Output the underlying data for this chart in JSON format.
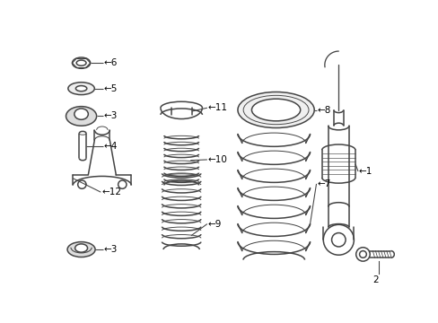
{
  "bg_color": "#ffffff",
  "line_color": "#444444",
  "lw": 1.1,
  "label_fontsize": 7.5,
  "fig_w": 4.89,
  "fig_h": 3.6,
  "dpi": 100
}
